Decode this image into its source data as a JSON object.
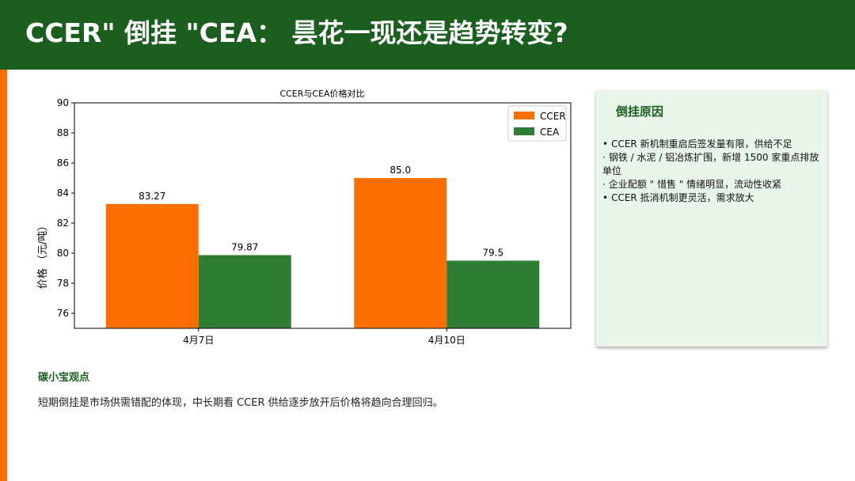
{
  "header": {
    "title": "CCER\" 倒挂 \"CEA： 昙花一现还是趋势转变?"
  },
  "chart_data": {
    "type": "bar",
    "title": "CCER与CEA价格对比",
    "ylabel": "价格 （元/吨）",
    "xlabel": "",
    "categories": [
      "4月7日",
      "4月10日"
    ],
    "series": [
      {
        "name": "CCER",
        "values": [
          83.27,
          85.0
        ],
        "labels": [
          "83.27",
          "85.0"
        ],
        "color": "#ff6f00"
      },
      {
        "name": "CEA",
        "values": [
          79.87,
          79.5
        ],
        "labels": [
          "79.87",
          "79.5"
        ],
        "color": "#2e7d32"
      }
    ],
    "ylim": [
      75,
      90
    ],
    "yticks": [
      "76",
      "78",
      "80",
      "82",
      "84",
      "86",
      "88",
      "90"
    ],
    "legend": "top-right",
    "grid": false
  },
  "panel": {
    "title": "倒挂原因",
    "items": [
      {
        "bullet": "•",
        "text": "CCER 新机制重启后签发量有限，供给不足"
      },
      {
        "bullet": "·",
        "text": "钢铁 / 水泥 / 铝冶炼扩围，新增 1500 家重点排放单位"
      },
      {
        "bullet": "·",
        "text": "企业配额 \" 惜售 \" 情绪明显，流动性收紧"
      },
      {
        "bullet": "•",
        "text": "CCER 抵消机制更灵活，需求放大"
      }
    ]
  },
  "note": {
    "title": "碳小宝观点",
    "text": "短期倒挂是市场供需错配的体现，中长期看 CCER 供给逐步放开后价格将趋向合理回归。"
  }
}
